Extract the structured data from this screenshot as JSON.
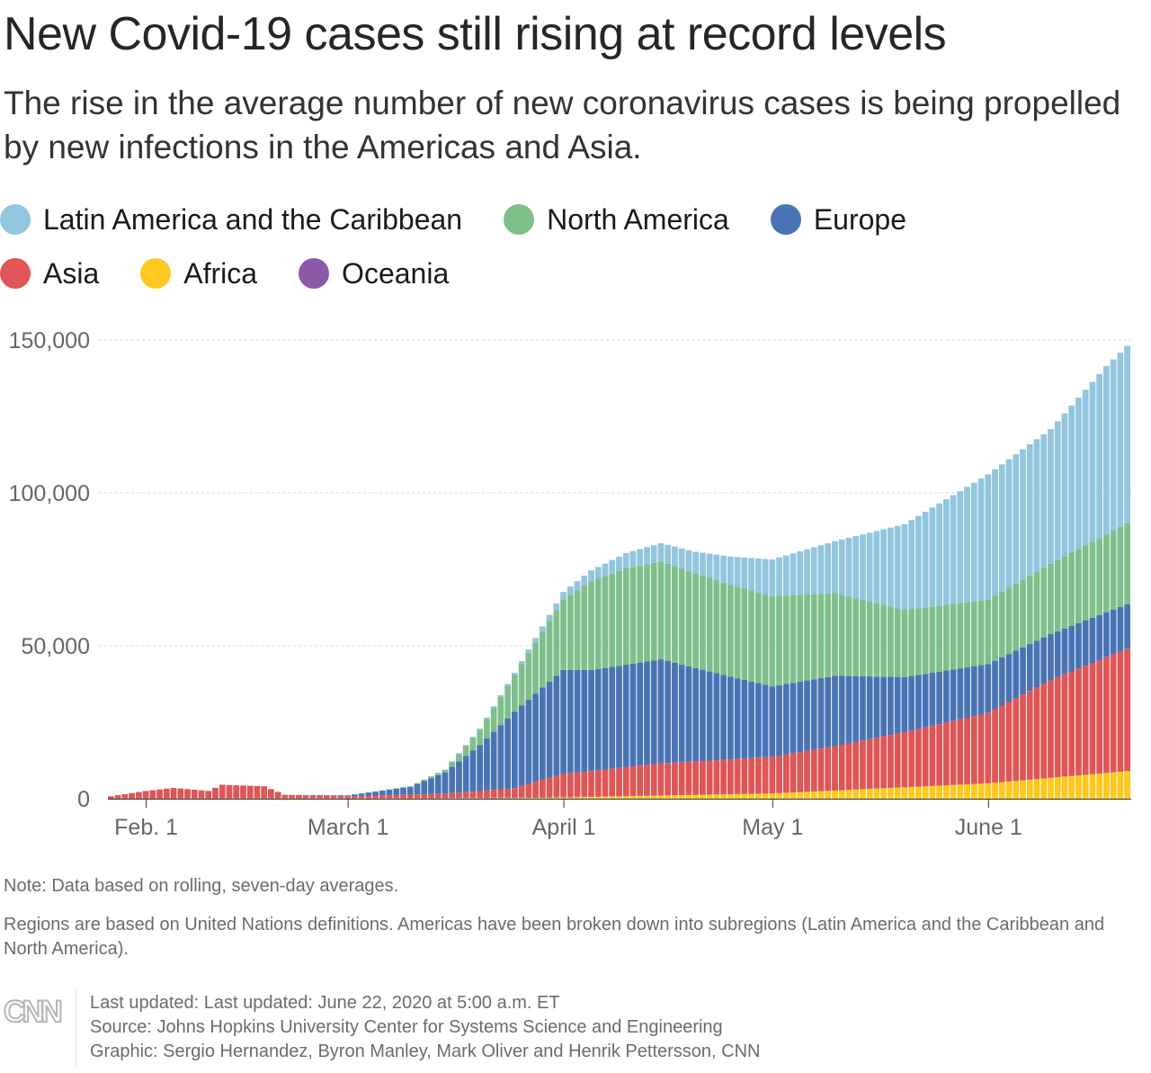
{
  "title": "New Covid-19 cases still rising at record levels",
  "subtitle": "The rise in the average number of new coronavirus cases is being propelled by new infections in the Americas and Asia.",
  "legend": [
    {
      "name": "Latin America and the Caribbean",
      "color": "#92c5de"
    },
    {
      "name": "North America",
      "color": "#7fbf8b"
    },
    {
      "name": "Europe",
      "color": "#4a73b5"
    },
    {
      "name": "Asia",
      "color": "#e05555"
    },
    {
      "name": "Africa",
      "color": "#ffc81e"
    },
    {
      "name": "Oceania",
      "color": "#8b5aa8"
    }
  ],
  "notes": {
    "note": "Note: Data based on rolling, seven-day averages.",
    "regions": "Regions are based on United Nations definitions. Americas have been broken down into subregions (Latin America and the Caribbean and North America)."
  },
  "footer": {
    "logo": "CNN",
    "updated": "Last updated: Last updated: June 22, 2020 at 5:00 a.m. ET",
    "source": "Source: Johns Hopkins University Center for Systems Science and Engineering",
    "graphic": "Graphic: Sergio Hernandez, Byron Manley, Mark Oliver and Henrik Pettersson, CNN"
  },
  "chart_data": {
    "type": "bar",
    "stacked": true,
    "x_start": "2020-01-27",
    "x_end": "2020-06-21",
    "x_ticks": [
      {
        "label": "Feb. 1",
        "date": "2020-02-01"
      },
      {
        "label": "March 1",
        "date": "2020-03-01"
      },
      {
        "label": "April 1",
        "date": "2020-04-01"
      },
      {
        "label": "May 1",
        "date": "2020-05-01"
      },
      {
        "label": "June 1",
        "date": "2020-06-01"
      }
    ],
    "y_ticks": [
      {
        "label": "0",
        "value": 0
      },
      {
        "label": "50,000",
        "value": 50000
      },
      {
        "label": "100,000",
        "value": 100000
      },
      {
        "label": "150,000",
        "value": 150000
      }
    ],
    "ylim": [
      0,
      150000
    ],
    "grid": true,
    "series_order_bottom_to_top": [
      "Africa",
      "Oceania",
      "Asia",
      "Europe",
      "North America",
      "Latin America and the Caribbean"
    ],
    "series": [
      {
        "name": "Africa",
        "color": "#ffc81e",
        "points": [
          [
            "2020-01-27",
            0
          ],
          [
            "2020-03-20",
            100
          ],
          [
            "2020-04-01",
            400
          ],
          [
            "2020-05-01",
            1700
          ],
          [
            "2020-06-01",
            5000
          ],
          [
            "2020-06-21",
            9000
          ]
        ]
      },
      {
        "name": "Oceania",
        "color": "#8b5aa8",
        "points": [
          [
            "2020-01-27",
            0
          ],
          [
            "2020-03-15",
            50
          ],
          [
            "2020-03-28",
            300
          ],
          [
            "2020-04-05",
            120
          ],
          [
            "2020-04-20",
            30
          ],
          [
            "2020-06-21",
            40
          ]
        ]
      },
      {
        "name": "Asia",
        "color": "#e05555",
        "points": [
          [
            "2020-01-27",
            800
          ],
          [
            "2020-02-01",
            2500
          ],
          [
            "2020-02-05",
            3500
          ],
          [
            "2020-02-10",
            2500
          ],
          [
            "2020-02-12",
            4500
          ],
          [
            "2020-02-18",
            4000
          ],
          [
            "2020-02-21",
            1200
          ],
          [
            "2020-03-01",
            700
          ],
          [
            "2020-03-15",
            1500
          ],
          [
            "2020-03-25",
            3000
          ],
          [
            "2020-04-01",
            7500
          ],
          [
            "2020-04-15",
            10500
          ],
          [
            "2020-05-01",
            12000
          ],
          [
            "2020-05-10",
            14500
          ],
          [
            "2020-05-20",
            18000
          ],
          [
            "2020-06-01",
            23000
          ],
          [
            "2020-06-10",
            32000
          ],
          [
            "2020-06-21",
            40000
          ]
        ]
      },
      {
        "name": "Europe",
        "color": "#4a73b5",
        "points": [
          [
            "2020-01-27",
            0
          ],
          [
            "2020-02-22",
            0
          ],
          [
            "2020-03-01",
            300
          ],
          [
            "2020-03-10",
            2500
          ],
          [
            "2020-03-15",
            7000
          ],
          [
            "2020-03-20",
            15000
          ],
          [
            "2020-03-25",
            25000
          ],
          [
            "2020-04-01",
            34000
          ],
          [
            "2020-04-05",
            33000
          ],
          [
            "2020-04-10",
            33500
          ],
          [
            "2020-04-15",
            34000
          ],
          [
            "2020-04-25",
            27000
          ],
          [
            "2020-05-01",
            23000
          ],
          [
            "2020-05-10",
            23000
          ],
          [
            "2020-05-20",
            18000
          ],
          [
            "2020-06-01",
            16000
          ],
          [
            "2020-06-10",
            15000
          ],
          [
            "2020-06-21",
            14500
          ]
        ]
      },
      {
        "name": "North America",
        "color": "#7fbf8b",
        "points": [
          [
            "2020-01-27",
            0
          ],
          [
            "2020-03-01",
            0
          ],
          [
            "2020-03-10",
            200
          ],
          [
            "2020-03-15",
            800
          ],
          [
            "2020-03-20",
            5000
          ],
          [
            "2020-03-25",
            12000
          ],
          [
            "2020-04-01",
            23000
          ],
          [
            "2020-04-05",
            29000
          ],
          [
            "2020-04-10",
            31500
          ],
          [
            "2020-04-15",
            32000
          ],
          [
            "2020-04-25",
            30000
          ],
          [
            "2020-05-01",
            29500
          ],
          [
            "2020-05-10",
            27000
          ],
          [
            "2020-05-20",
            22000
          ],
          [
            "2020-06-01",
            21000
          ],
          [
            "2020-06-10",
            23000
          ],
          [
            "2020-06-21",
            26500
          ]
        ]
      },
      {
        "name": "Latin America and the Caribbean",
        "color": "#92c5de",
        "points": [
          [
            "2020-01-27",
            0
          ],
          [
            "2020-03-05",
            0
          ],
          [
            "2020-03-15",
            100
          ],
          [
            "2020-03-25",
            700
          ],
          [
            "2020-04-01",
            2500
          ],
          [
            "2020-04-10",
            5000
          ],
          [
            "2020-04-20",
            7000
          ],
          [
            "2020-05-01",
            12000
          ],
          [
            "2020-05-10",
            17000
          ],
          [
            "2020-05-20",
            28000
          ],
          [
            "2020-06-01",
            41000
          ],
          [
            "2020-06-10",
            44000
          ],
          [
            "2020-06-18",
            55000
          ],
          [
            "2020-06-21",
            58000
          ]
        ]
      }
    ]
  }
}
